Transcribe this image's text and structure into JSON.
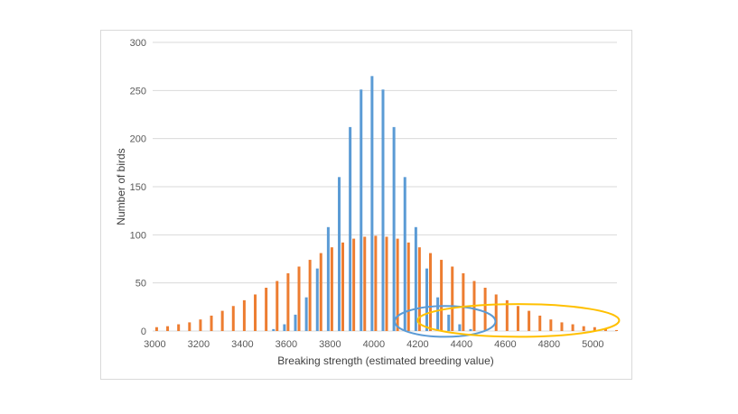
{
  "chart_data": {
    "type": "bar",
    "xlabel": "Breaking strength (estimated breeding value)",
    "ylabel": "Number of birds",
    "ylim": [
      0,
      300
    ],
    "yticks": [
      0,
      50,
      100,
      150,
      200,
      250,
      300
    ],
    "xticks": [
      3000,
      3200,
      3400,
      3600,
      3800,
      4000,
      4200,
      4400,
      4600,
      4800,
      5000
    ],
    "xlim": [
      2990,
      5110
    ],
    "grid": true,
    "colors": {
      "series_a": "#5b9bd5",
      "series_b": "#ed7d31",
      "blue_ellipse": "#5b9bd5",
      "yellow_ellipse": "#ffc000",
      "grid": "#d9d9d9"
    },
    "x": [
      3000,
      3050,
      3100,
      3150,
      3200,
      3250,
      3300,
      3350,
      3400,
      3450,
      3500,
      3550,
      3600,
      3650,
      3700,
      3750,
      3800,
      3850,
      3900,
      3950,
      4000,
      4050,
      4100,
      4150,
      4200,
      4250,
      4300,
      4350,
      4400,
      4450,
      4500,
      4550,
      4600,
      4650,
      4700,
      4750,
      4800,
      4850,
      4900,
      4950,
      5000,
      5050,
      5100
    ],
    "series": [
      {
        "values": [
          0,
          0,
          0,
          0,
          0,
          0,
          0,
          0,
          0,
          0,
          0,
          2,
          7,
          17,
          35,
          65,
          108,
          160,
          212,
          251,
          265,
          251,
          212,
          160,
          108,
          65,
          35,
          17,
          7,
          2,
          0,
          0,
          0,
          0,
          0,
          0,
          0,
          0,
          0,
          0,
          0,
          0,
          0
        ]
      },
      {
        "values": [
          4,
          5,
          7,
          9,
          12,
          16,
          21,
          26,
          32,
          38,
          45,
          52,
          60,
          67,
          74,
          81,
          87,
          92,
          96,
          98,
          99,
          98,
          96,
          92,
          87,
          81,
          74,
          67,
          60,
          52,
          45,
          38,
          32,
          26,
          21,
          16,
          12,
          9,
          7,
          5,
          4,
          2,
          1
        ]
      }
    ],
    "annotations": [
      {
        "shape": "ellipse",
        "color": "blue_ellipse",
        "cx": 4325,
        "cy": 10,
        "rx": 230,
        "ry": 16
      },
      {
        "shape": "ellipse",
        "color": "yellow_ellipse",
        "cx": 4660,
        "cy": 11,
        "rx": 460,
        "ry": 17
      }
    ]
  }
}
